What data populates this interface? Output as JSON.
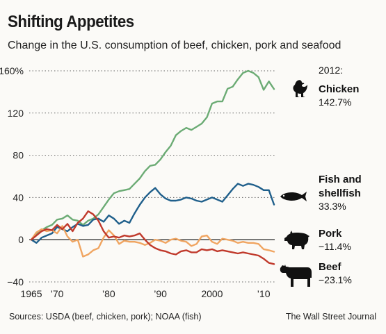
{
  "header": {
    "title": "Shifting Appetites",
    "subtitle": "Change in the U.S. consumption of beef, chicken, pork and seafood"
  },
  "legend_header": "2012:",
  "footer": {
    "source": "Sources: USDA (beef, chicken, pork); NOAA (fish)",
    "credit": "The Wall Street Journal"
  },
  "chart_data": {
    "type": "line",
    "title": "Shifting Appetites",
    "subtitle": "Change in the U.S. consumption of beef, chicken, pork and seafood",
    "xlabel": "",
    "ylabel": "",
    "xlim": [
      1965,
      2012
    ],
    "ylim": [
      -40,
      160
    ],
    "yticks": [
      {
        "value": -40,
        "label": "−40"
      },
      {
        "value": 0,
        "label": "0"
      },
      {
        "value": 40,
        "label": "40"
      },
      {
        "value": 80,
        "label": "80"
      },
      {
        "value": 120,
        "label": "120"
      },
      {
        "value": 160,
        "label": "160%"
      }
    ],
    "xticks": [
      {
        "value": 1965,
        "label": "1965"
      },
      {
        "value": 1970,
        "label": "’70"
      },
      {
        "value": 1980,
        "label": "’80"
      },
      {
        "value": 1990,
        "label": "’90"
      },
      {
        "value": 2000,
        "label": "2000"
      },
      {
        "value": 2010,
        "label": "’10"
      }
    ],
    "grid": "horizontal dotted",
    "legend_placement": "right",
    "x": [
      1965,
      1966,
      1967,
      1968,
      1969,
      1970,
      1971,
      1972,
      1973,
      1974,
      1975,
      1976,
      1977,
      1978,
      1979,
      1980,
      1981,
      1982,
      1983,
      1984,
      1985,
      1986,
      1987,
      1988,
      1989,
      1990,
      1991,
      1992,
      1993,
      1994,
      1995,
      1996,
      1997,
      1998,
      1999,
      2000,
      2001,
      2002,
      2003,
      2004,
      2005,
      2006,
      2007,
      2008,
      2009,
      2010,
      2011,
      2012
    ],
    "series": [
      {
        "name": "Chicken",
        "value_label": "142.7%",
        "color": "#6bab74",
        "icon": "chicken-icon",
        "values": [
          0,
          6,
          9,
          12,
          14,
          19,
          20,
          23,
          19,
          18,
          14,
          18,
          20,
          24,
          31,
          38,
          44,
          46,
          47,
          48,
          53,
          58,
          65,
          70,
          71,
          76,
          83,
          89,
          99,
          103,
          106,
          104,
          107,
          110,
          116,
          129,
          131,
          131,
          143,
          145,
          152,
          158,
          160,
          158,
          154,
          142,
          150,
          142.7
        ]
      },
      {
        "name": "Fish and shellfish",
        "value_label": "33.3%",
        "color": "#1f5f8b",
        "icon": "fish-icon",
        "values": [
          0,
          -3,
          2,
          4,
          6,
          12,
          10,
          8,
          12,
          15,
          13,
          14,
          19,
          20,
          17,
          23,
          20,
          15,
          18,
          16,
          25,
          33,
          40,
          45,
          49,
          43,
          39,
          37,
          37,
          38,
          40,
          39,
          37,
          36,
          38,
          40,
          38,
          36,
          42,
          48,
          53,
          51,
          53,
          52,
          50,
          47,
          47,
          33.3
        ]
      },
      {
        "name": "Pork",
        "value_label": "−11.4%",
        "color": "#f0a561",
        "icon": "pig-icon",
        "values": [
          0,
          7,
          10,
          8,
          9,
          6,
          13,
          3,
          -2,
          0,
          -16,
          -14,
          -10,
          -8,
          2,
          9,
          4,
          -4,
          -1,
          -2,
          -2,
          -3,
          -5,
          -3,
          0,
          -1,
          -3,
          0,
          1,
          -1,
          -2,
          -6,
          -4,
          3,
          4,
          -2,
          -4,
          1,
          0,
          -1,
          -3,
          -2,
          -3,
          -3,
          -4,
          -9,
          -10,
          -11.4
        ]
      },
      {
        "name": "Beef",
        "value_label": "−23.1%",
        "color": "#c0392b",
        "icon": "cow-icon",
        "values": [
          0,
          4,
          8,
          10,
          9,
          14,
          10,
          15,
          8,
          16,
          20,
          27,
          24,
          18,
          8,
          2,
          3,
          2,
          4,
          3,
          4,
          6,
          0,
          -5,
          -8,
          -10,
          -11,
          -13,
          -14,
          -11,
          -10,
          -12,
          -12,
          -9,
          -10,
          -9,
          -11,
          -10,
          -11,
          -12,
          -13,
          -12,
          -13,
          -14,
          -15,
          -18,
          -22,
          -23.1
        ]
      }
    ]
  }
}
